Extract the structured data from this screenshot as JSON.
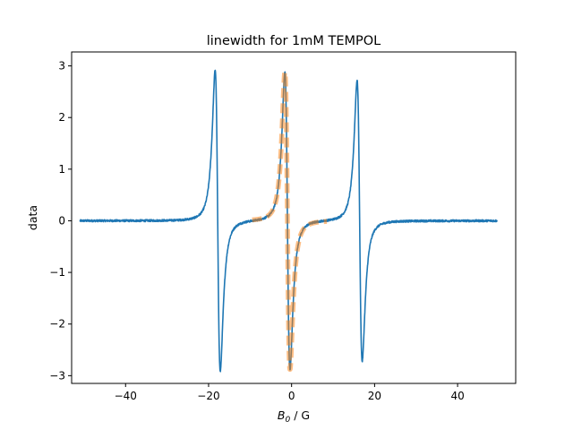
{
  "chart_data": {
    "type": "line",
    "title": "linewidth for 1mM TEMPOL",
    "xlabel": "B",
    "xlabel_sub": "0",
    "xlabel_unit": " / G",
    "ylabel": "data",
    "xlim": [
      -53,
      54
    ],
    "ylim": [
      -3.15,
      3.27
    ],
    "xticks": [
      -40,
      -20,
      0,
      20,
      40
    ],
    "xtick_labels": [
      "−40",
      "−20",
      "0",
      "20",
      "40"
    ],
    "yticks": [
      -3,
      -2,
      -1,
      0,
      1,
      2,
      3
    ],
    "ytick_labels": [
      "−3",
      "−2",
      "−1",
      "0",
      "1",
      "2",
      "3"
    ],
    "grid": false,
    "series": [
      {
        "role": "data",
        "color": "#1f77b4",
        "style": "solid",
        "x_range": [
          -51,
          49.5
        ],
        "lines": [
          {
            "center": -17.8,
            "amplitude": 2.92,
            "width": 0.62
          },
          {
            "center": -1.0,
            "amplitude": 2.88,
            "width": 0.62
          },
          {
            "center": 16.4,
            "amplitude": 2.72,
            "width": 0.62
          }
        ],
        "noise": 0.02
      },
      {
        "role": "fit",
        "color": "#ff7f0e",
        "style": "dashed",
        "opacity": 0.5,
        "x_range": [
          -9.5,
          8.5
        ],
        "lines": [
          {
            "center": -1.0,
            "amplitude": 2.88,
            "width": 0.62
          }
        ]
      }
    ]
  }
}
